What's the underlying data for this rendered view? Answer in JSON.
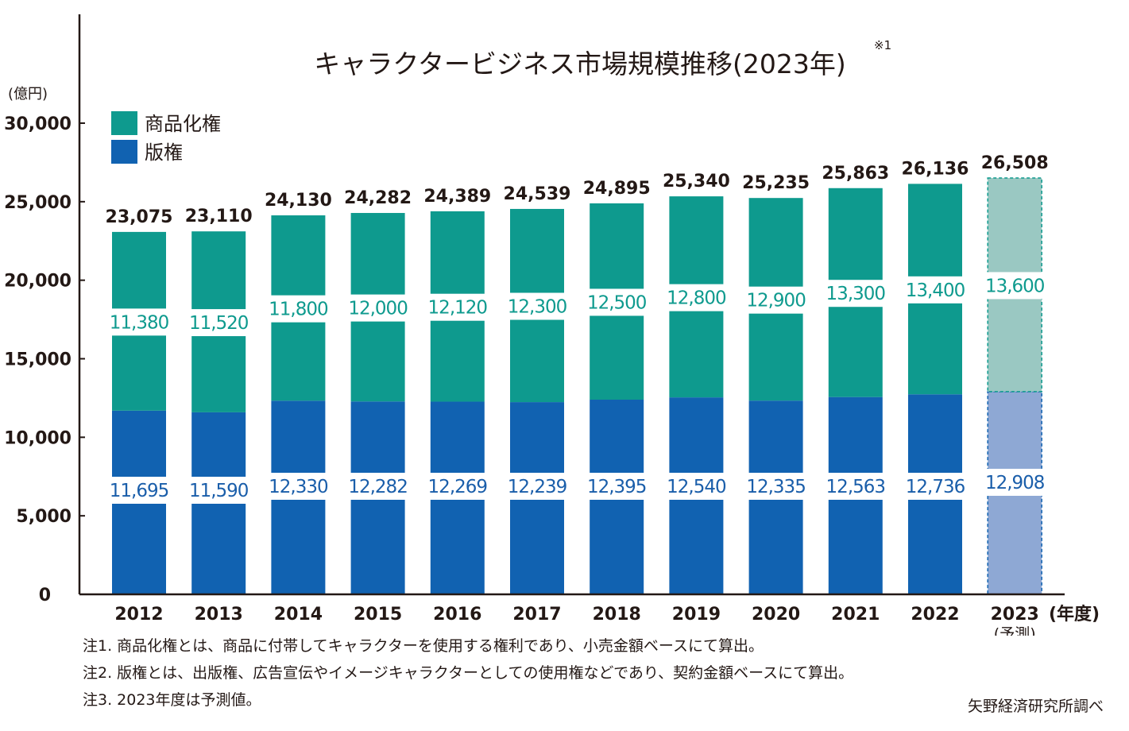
{
  "colors": {
    "merch": "#0e9a8e",
    "publish": "#1162b1",
    "merch_forecast": "#9ac8c2",
    "publish_forecast": "#8ea8d4",
    "merch_label": "#0e9a8e",
    "publish_label": "#1a5eaa",
    "text": "#231815",
    "axis": "#231815"
  },
  "chart_data": {
    "type": "bar",
    "stacked": true,
    "title": "キャラクタービジネス市場規模推移(2023年)",
    "title_note": "※1",
    "ylabel": "(億円)",
    "xlabel": "(年度)",
    "ylim": [
      0,
      30000
    ],
    "yticks": [
      0,
      5000,
      10000,
      15000,
      20000,
      25000,
      30000
    ],
    "ytick_labels": [
      "0",
      "5,000",
      "10,000",
      "15,000",
      "20,000",
      "25,000",
      "30,000"
    ],
    "categories": [
      "2012",
      "2013",
      "2014",
      "2015",
      "2016",
      "2017",
      "2018",
      "2019",
      "2020",
      "2021",
      "2022",
      "2023"
    ],
    "forecast_index": 11,
    "forecast_sublabel": "(予測)",
    "series": [
      {
        "name": "版権",
        "values": [
          11695,
          11590,
          12330,
          12282,
          12269,
          12239,
          12395,
          12540,
          12335,
          12563,
          12736,
          12908
        ],
        "labels": [
          "11,695",
          "11,590",
          "12,330",
          "12,282",
          "12,269",
          "12,239",
          "12,395",
          "12,540",
          "12,335",
          "12,563",
          "12,736",
          "12,908"
        ]
      },
      {
        "name": "商品化権",
        "values": [
          11380,
          11520,
          11800,
          12000,
          12120,
          12300,
          12500,
          12800,
          12900,
          13300,
          13400,
          13600
        ],
        "labels": [
          "11,380",
          "11,520",
          "11,800",
          "12,000",
          "12,120",
          "12,300",
          "12,500",
          "12,800",
          "12,900",
          "13,300",
          "13,400",
          "13,600"
        ]
      }
    ],
    "totals": [
      23075,
      23110,
      24130,
      24282,
      24389,
      24539,
      24895,
      25340,
      25235,
      25863,
      26136,
      26508
    ],
    "total_labels": [
      "23,075",
      "23,110",
      "24,130",
      "24,282",
      "24,389",
      "24,539",
      "24,895",
      "25,340",
      "25,235",
      "25,863",
      "26,136",
      "26,508"
    ],
    "legend": {
      "position": "top-left",
      "items": [
        "商品化権",
        "版権"
      ]
    },
    "grid": false
  },
  "footnotes": [
    "注1. 商品化権とは、商品に付帯してキャラクターを使用する権利であり、小売金額ベースにて算出。",
    "注2. 版権とは、出版権、広告宣伝やイメージキャラクターとしての使用権などであり、契約金額ベースにて算出。",
    "注3. 2023年度は予測値。"
  ],
  "source": "矢野経済研究所調べ"
}
